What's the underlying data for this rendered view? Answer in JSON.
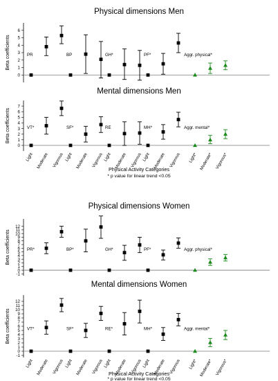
{
  "colors": {
    "black": "#000000",
    "green": "#1a8a1a",
    "axis": "#000000",
    "zero": "#7a7a7a"
  },
  "chart_data": [
    {
      "type": "scatter",
      "title": "Physical dimensions Men",
      "ylabel": "Beta coefficients",
      "ylim": [
        -1,
        7
      ],
      "yticks": [
        "0",
        "1",
        "2",
        "3",
        "4",
        "5",
        "6"
      ],
      "categories": [
        "Light",
        "Moderate",
        "Vigorous"
      ],
      "show_xticklabels": false,
      "groups": [
        {
          "label": "PR",
          "color": "black",
          "points": [
            {
              "y": 0,
              "lo": 0,
              "hi": 0
            },
            {
              "y": 3.8,
              "lo": 2.6,
              "hi": 5.1
            },
            {
              "y": 5.3,
              "lo": 4.2,
              "hi": 6.6
            }
          ]
        },
        {
          "label": "BP",
          "color": "black",
          "points": [
            {
              "y": 0,
              "lo": 0,
              "hi": 0
            },
            {
              "y": 2.8,
              "lo": 0.2,
              "hi": 5.4
            },
            {
              "y": 2.1,
              "lo": -0.4,
              "hi": 4.5
            }
          ]
        },
        {
          "label": "GH*",
          "color": "black",
          "points": [
            {
              "y": 0,
              "lo": 0,
              "hi": 0
            },
            {
              "y": 1.4,
              "lo": -0.6,
              "hi": 3.5
            },
            {
              "y": 1.3,
              "lo": -0.7,
              "hi": 3.3
            }
          ]
        },
        {
          "label": "PF*",
          "color": "black",
          "points": [
            {
              "y": 0,
              "lo": 0,
              "hi": 0
            },
            {
              "y": 1.5,
              "lo": 0.1,
              "hi": 2.9
            },
            {
              "y": 4.3,
              "lo": 3.0,
              "hi": 5.6
            }
          ]
        },
        {
          "label": "Aggr. physical*",
          "color": "green",
          "points": [
            {
              "y": 0,
              "lo": 0,
              "hi": 0
            },
            {
              "y": 0.9,
              "lo": 0.2,
              "hi": 1.6
            },
            {
              "y": 1.3,
              "lo": 0.7,
              "hi": 1.9
            }
          ]
        }
      ]
    },
    {
      "type": "scatter",
      "title": "Mental dimensions Men",
      "ylabel": "Beta coefficients",
      "ylim": [
        -1,
        8
      ],
      "yticks": [
        "0",
        "1",
        "2",
        "3",
        "4",
        "5",
        "6",
        "7"
      ],
      "categories": [
        "Light",
        "Moderate",
        "Vigorous"
      ],
      "show_xticklabels": true,
      "xlabel": "Physical Activity Categories",
      "footnote": "* p value for linear trend <0.05",
      "groups": [
        {
          "label": "VT*",
          "color": "black",
          "points": [
            {
              "y": 0,
              "lo": 0,
              "hi": 0
            },
            {
              "y": 3.5,
              "lo": 2.0,
              "hi": 5.0
            },
            {
              "y": 6.6,
              "lo": 5.3,
              "hi": 7.9
            }
          ]
        },
        {
          "label": "SF*",
          "color": "black",
          "points": [
            {
              "y": 0,
              "lo": 0,
              "hi": 0
            },
            {
              "y": 2.0,
              "lo": 0.6,
              "hi": 3.4
            },
            {
              "y": 3.7,
              "lo": 2.3,
              "hi": 5.1
            }
          ]
        },
        {
          "label": "RE",
          "color": "black",
          "points": [
            {
              "y": 0,
              "lo": 0,
              "hi": 0
            },
            {
              "y": 2.1,
              "lo": 0.0,
              "hi": 4.2
            },
            {
              "y": 2.2,
              "lo": 0.2,
              "hi": 4.2
            }
          ]
        },
        {
          "label": "MH*",
          "color": "black",
          "points": [
            {
              "y": 0,
              "lo": 0,
              "hi": 0
            },
            {
              "y": 2.4,
              "lo": 1.1,
              "hi": 3.7
            },
            {
              "y": 4.6,
              "lo": 3.3,
              "hi": 5.9
            }
          ]
        },
        {
          "label": "Aggr. mental*",
          "color": "green",
          "points": [
            {
              "y": 0,
              "lo": 0,
              "hi": 0
            },
            {
              "y": 1.0,
              "lo": 0.3,
              "hi": 1.8
            },
            {
              "y": 2.0,
              "lo": 1.2,
              "hi": 2.8
            }
          ]
        }
      ]
    },
    {
      "type": "scatter",
      "title": "Physical dimensions Women",
      "ylabel": "Beta coefficients",
      "ylim": [
        -1.5,
        14
      ],
      "yticks": [
        "-1",
        "0",
        "1",
        "2",
        "3",
        "4",
        "5",
        "6",
        "7",
        "8",
        "9",
        "10",
        "11",
        "12"
      ],
      "categories": [
        "Light",
        "Moderate",
        "Vigorous"
      ],
      "show_xticklabels": false,
      "groups": [
        {
          "label": "PR*",
          "color": "black",
          "points": [
            {
              "y": 0,
              "lo": 0,
              "hi": 0
            },
            {
              "y": 6.0,
              "lo": 4.5,
              "hi": 7.5
            },
            {
              "y": 10.5,
              "lo": 9.0,
              "hi": 12.0
            }
          ]
        },
        {
          "label": "BP*",
          "color": "black",
          "points": [
            {
              "y": 0,
              "lo": 0,
              "hi": 0
            },
            {
              "y": 8.0,
              "lo": 5.0,
              "hi": 11.2
            },
            {
              "y": 11.8,
              "lo": 8.7,
              "hi": 14.8
            }
          ]
        },
        {
          "label": "GH*",
          "color": "black",
          "points": [
            {
              "y": 0,
              "lo": 0,
              "hi": 0
            },
            {
              "y": 4.8,
              "lo": 2.7,
              "hi": 6.8
            },
            {
              "y": 6.9,
              "lo": 4.8,
              "hi": 9.0
            }
          ]
        },
        {
          "label": "PF*",
          "color": "black",
          "points": [
            {
              "y": 0,
              "lo": 0,
              "hi": 0
            },
            {
              "y": 4.2,
              "lo": 2.8,
              "hi": 5.5
            },
            {
              "y": 7.4,
              "lo": 6.0,
              "hi": 8.8
            }
          ]
        },
        {
          "label": "Aggr. physical*",
          "color": "green",
          "points": [
            {
              "y": 0,
              "lo": 0,
              "hi": 0
            },
            {
              "y": 2.2,
              "lo": 1.3,
              "hi": 3.1
            },
            {
              "y": 3.4,
              "lo": 2.5,
              "hi": 4.3
            }
          ]
        }
      ]
    },
    {
      "type": "scatter",
      "title": "Mental dimensions Women",
      "ylabel": "Beta coefficients",
      "ylim": [
        -1.5,
        13.5
      ],
      "yticks": [
        "-1",
        "0",
        "1",
        "2",
        "3",
        "4",
        "5",
        "6",
        "7",
        "8",
        "9",
        "10",
        "11",
        "12"
      ],
      "categories": [
        "Light",
        "Moderate",
        "Vigorous"
      ],
      "show_xticklabels": true,
      "xlabel": "Physical Activity Categories",
      "footnote": "* p value for linear trend <0.05",
      "groups": [
        {
          "label": "VT*",
          "color": "black",
          "points": [
            {
              "y": 0,
              "lo": 0,
              "hi": 0
            },
            {
              "y": 5.7,
              "lo": 4.1,
              "hi": 7.3
            },
            {
              "y": 11.1,
              "lo": 9.5,
              "hi": 12.7
            }
          ]
        },
        {
          "label": "SF*",
          "color": "black",
          "points": [
            {
              "y": 0,
              "lo": 0,
              "hi": 0
            },
            {
              "y": 5.0,
              "lo": 3.3,
              "hi": 6.7
            },
            {
              "y": 9.1,
              "lo": 7.4,
              "hi": 10.8
            }
          ]
        },
        {
          "label": "RE*",
          "color": "black",
          "points": [
            {
              "y": 0,
              "lo": 0,
              "hi": 0
            },
            {
              "y": 6.6,
              "lo": 3.9,
              "hi": 9.3
            },
            {
              "y": 9.6,
              "lo": 6.8,
              "hi": 12.3
            }
          ]
        },
        {
          "label": "MH*",
          "color": "black",
          "points": [
            {
              "y": 0,
              "lo": 0,
              "hi": 0
            },
            {
              "y": 4.1,
              "lo": 2.6,
              "hi": 5.7
            },
            {
              "y": 7.6,
              "lo": 6.1,
              "hi": 9.1
            }
          ]
        },
        {
          "label": "Aggr. mental*",
          "color": "green",
          "points": [
            {
              "y": 0,
              "lo": 0,
              "hi": 0
            },
            {
              "y": 2.1,
              "lo": 1.1,
              "hi": 3.1
            },
            {
              "y": 3.9,
              "lo": 2.8,
              "hi": 5.0
            }
          ]
        }
      ]
    }
  ]
}
